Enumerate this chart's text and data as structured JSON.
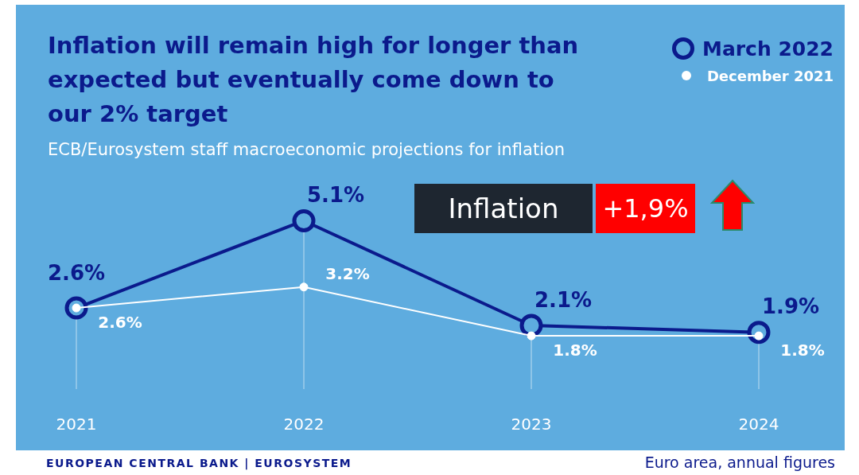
{
  "chart_data": {
    "type": "line",
    "title": "Inflation will remain high for longer than expected but eventually come down to our 2% target",
    "subtitle": "ECB/Eurosystem staff macroeconomic projections for inflation",
    "categories": [
      "2021",
      "2022",
      "2023",
      "2024"
    ],
    "series": [
      {
        "name": "March 2022",
        "color": "#0b1a8c",
        "values": [
          2.6,
          5.1,
          2.1,
          1.9
        ],
        "value_labels": [
          "2.6%",
          "5.1%",
          "2.1%",
          "1.9%"
        ],
        "marker": "circle"
      },
      {
        "name": "December 2021",
        "color": "#ffffff",
        "values": [
          2.6,
          3.2,
          1.8,
          1.8
        ],
        "value_labels": [
          "2.6%",
          "3.2%",
          "1.8%",
          "1.8%"
        ],
        "marker": "circle"
      }
    ],
    "tick_labels": "x",
    "grid": "x",
    "legend": "top right",
    "annotations": [
      "Inflation",
      "+1,9%",
      "EUROPEAN CENTRAL BANK | EUROSYSTEM",
      "Euro area, annual figures"
    ]
  }
}
